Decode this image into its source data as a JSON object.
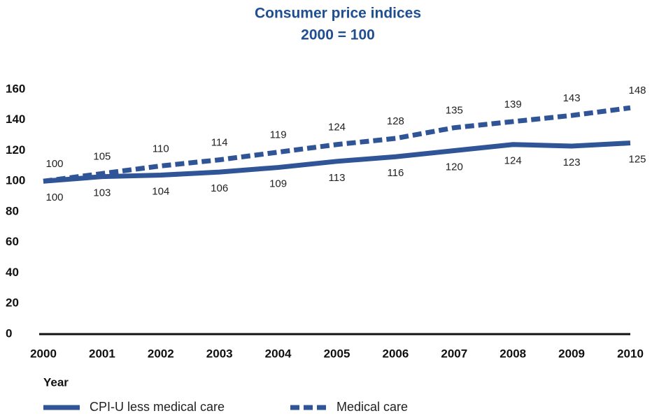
{
  "chart_data": {
    "type": "line",
    "title": "Consumer price indices",
    "subtitle": "2000 = 100",
    "x_label": "Year",
    "x": [
      2000,
      2001,
      2002,
      2003,
      2004,
      2005,
      2006,
      2007,
      2008,
      2009,
      2010
    ],
    "xlim": [
      2000,
      2010
    ],
    "xticks": [
      2000,
      2001,
      2002,
      2003,
      2004,
      2005,
      2006,
      2007,
      2008,
      2009,
      2010
    ],
    "ylim": [
      0,
      160
    ],
    "yticks": [
      0,
      20,
      40,
      60,
      80,
      100,
      120,
      140,
      160
    ],
    "grid": false,
    "legend": "bottom",
    "series": [
      {
        "name": "CPI-U less medical care",
        "color": "#2f5597",
        "style": "solid",
        "values": [
          100,
          103,
          104,
          106,
          109,
          113,
          116,
          120,
          124,
          123,
          125
        ]
      },
      {
        "name": "Medical care",
        "color": "#2f5597",
        "style": "dashed",
        "values": [
          100,
          105,
          110,
          114,
          119,
          124,
          128,
          135,
          139,
          143,
          148
        ]
      }
    ]
  }
}
